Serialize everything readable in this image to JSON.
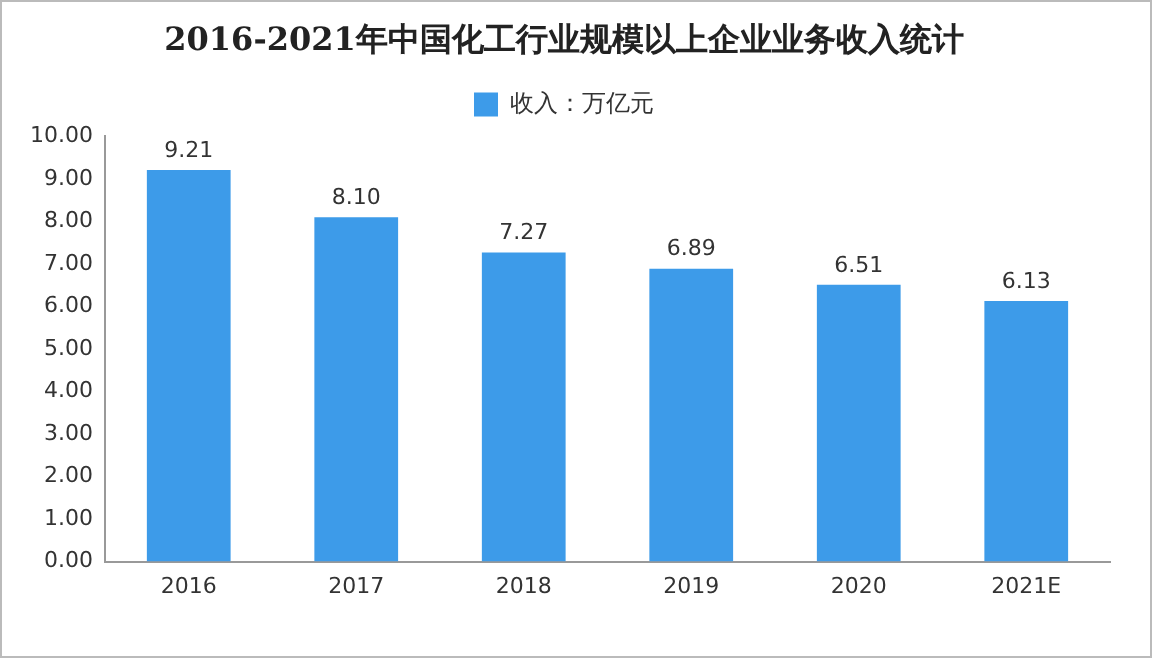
{
  "chart_data": {
    "type": "bar",
    "title": "2016-2021年中国化工行业规模以上企业业务收入统计",
    "categories": [
      "2016",
      "2017",
      "2018",
      "2019",
      "2020",
      "2021E"
    ],
    "series": [
      {
        "name": "收入：万亿元",
        "color": "#3d9be9",
        "values": [
          9.21,
          8.1,
          7.27,
          6.89,
          6.51,
          6.13
        ]
      }
    ],
    "ylim": [
      0,
      10
    ],
    "yticks": [
      {
        "value": 0,
        "label": "0.00"
      },
      {
        "value": 1,
        "label": "1.00"
      },
      {
        "value": 2,
        "label": "2.00"
      },
      {
        "value": 3,
        "label": "3.00"
      },
      {
        "value": 4,
        "label": "4.00"
      },
      {
        "value": 5,
        "label": "5.00"
      },
      {
        "value": 6,
        "label": "6.00"
      },
      {
        "value": 7,
        "label": "7.00"
      },
      {
        "value": 8,
        "label": "8.00"
      },
      {
        "value": 9,
        "label": "9.00"
      },
      {
        "value": 10,
        "label": "10.00"
      }
    ],
    "value_labels": [
      [
        "9.21",
        "8.10",
        "7.27",
        "6.89",
        "6.51",
        "6.13"
      ]
    ],
    "grid": false,
    "legend": "top"
  }
}
